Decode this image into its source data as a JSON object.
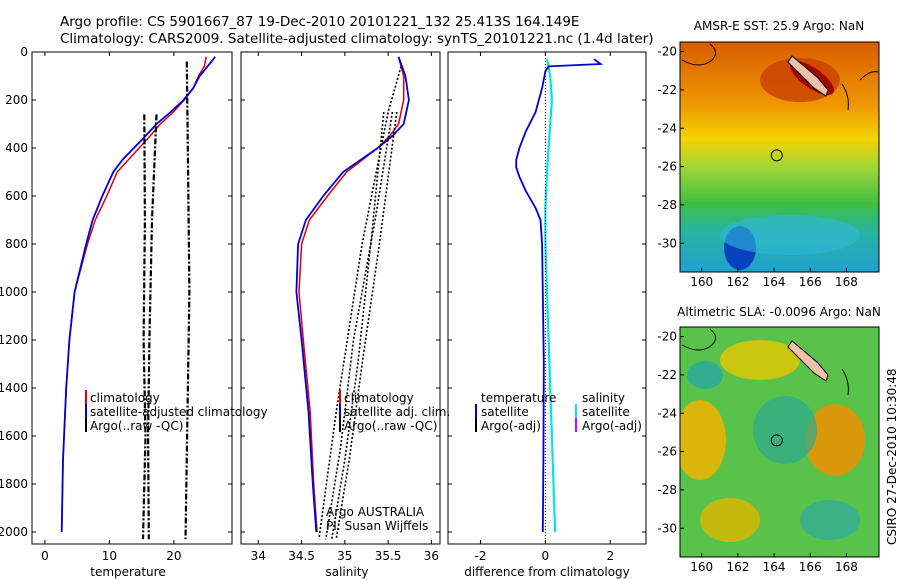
{
  "header": {
    "line1": "Argo profile: CS 5901667_87 19-Dec-2010 20101221_132 25.413S 164.149E",
    "line2": "Climatology: CARS2009. Satellite-adjusted climatology: synTS_20101221.nc (1.4d later)"
  },
  "footer_stamp": "CSIRO 27-Dec-2010 10:30:48",
  "colors": {
    "climatology": "#e00000",
    "satellite": "#0000dd",
    "argo": "#000000",
    "sat_salinity": "#00e5e5",
    "argo_salinity_adj": "#e000e0"
  },
  "chart_data": [
    {
      "type": "line",
      "xlabel": "temperature",
      "xlim": [
        -2,
        29
      ],
      "ylim": [
        0,
        2050
      ],
      "y_reversed": true,
      "xticks": [
        0,
        10,
        20
      ],
      "yticks": [
        0,
        200,
        400,
        600,
        800,
        1000,
        1200,
        1400,
        1600,
        1800,
        2000
      ],
      "legend": [
        "climatology",
        "satellite-adjusted climatology",
        "Argo(..raw -QC)"
      ],
      "series": [
        {
          "name": "climatology",
          "x": [
            25.0,
            24.7,
            23.8,
            23.0,
            21.6,
            19.9,
            17.9,
            16.3,
            14.6,
            12.9,
            11.2,
            9.6,
            7.8,
            6.6,
            5.6,
            4.6,
            3.8,
            3.3,
            2.8,
            2.6
          ],
          "y": [
            20,
            60,
            100,
            150,
            200,
            250,
            300,
            350,
            400,
            450,
            500,
            600,
            700,
            800,
            900,
            1000,
            1200,
            1400,
            1700,
            2000
          ]
        },
        {
          "name": "satellite-adjusted climatology",
          "x": [
            26.4,
            25.2,
            24.0,
            23.0,
            21.5,
            19.5,
            17.3,
            15.6,
            13.8,
            12.0,
            10.6,
            8.9,
            7.4,
            6.4,
            5.5,
            4.6,
            3.8,
            3.3,
            2.8,
            2.6
          ],
          "y": [
            20,
            60,
            100,
            150,
            200,
            250,
            300,
            350,
            400,
            450,
            500,
            600,
            700,
            800,
            900,
            1000,
            1200,
            1400,
            1700,
            2000
          ]
        },
        {
          "name": "Argo(..raw -QC)",
          "x": [
            22.0,
            22.2,
            22.4,
            22.1,
            21.8,
            17.3,
            16.6,
            16.2,
            16.0,
            15.4,
            15.5,
            15.3
          ],
          "y": [
            40,
            200,
            400,
            600,
            800,
            250,
            400,
            700,
            1000,
            1300,
            1700,
            2000
          ]
        }
      ]
    },
    {
      "type": "line",
      "xlabel": "salinity",
      "xlim": [
        33.8,
        36.1
      ],
      "ylim": [
        0,
        2050
      ],
      "y_reversed": true,
      "xticks": [
        34,
        34.5,
        35,
        35.5,
        36
      ],
      "legend": [
        "climatology",
        "satellite adj. clim.",
        "Argo(..raw -QC)"
      ],
      "annotation": [
        "Argo AUSTRALIA",
        "PI: Susan Wijffels"
      ],
      "series": [
        {
          "name": "climatology",
          "x": [
            35.62,
            35.68,
            35.68,
            35.62,
            35.52,
            35.38,
            35.2,
            35.02,
            34.8,
            34.59,
            34.5,
            34.47,
            34.52,
            34.6,
            34.64,
            34.68
          ],
          "y": [
            20,
            100,
            200,
            300,
            350,
            400,
            450,
            500,
            600,
            700,
            800,
            1000,
            1200,
            1500,
            1800,
            2000
          ]
        },
        {
          "name": "satellite adj. clim.",
          "x": [
            35.62,
            35.7,
            35.74,
            35.68,
            35.55,
            35.38,
            35.18,
            34.98,
            34.75,
            34.55,
            34.46,
            34.44,
            34.5,
            34.58,
            34.63,
            34.67
          ],
          "y": [
            20,
            100,
            200,
            300,
            350,
            400,
            450,
            500,
            600,
            700,
            800,
            1000,
            1200,
            1500,
            1800,
            2000
          ]
        },
        {
          "name": "Argo(..raw -QC)",
          "x": [
            35.65,
            35.5,
            35.2,
            34.9,
            34.7,
            35.6,
            35.4,
            35.2,
            35.05,
            34.9,
            35.45,
            35.3,
            35.15,
            35.0,
            34.85,
            34.72
          ],
          "y": [
            60,
            250,
            800,
            1500,
            2020,
            250,
            800,
            1300,
            1700,
            2020,
            250,
            800,
            1300,
            1700,
            2020,
            2020
          ]
        }
      ]
    },
    {
      "type": "line",
      "xlabel": "difference from climatology",
      "xlim": [
        -3,
        3.1
      ],
      "ylim": [
        0,
        2050
      ],
      "y_reversed": true,
      "xticks": [
        -2,
        0,
        2
      ],
      "legend": [
        "temperature",
        "satellite",
        "Argo(-adj)",
        "salinity",
        "satellite",
        "Argo(-adj)"
      ],
      "series": [
        {
          "name": "temperature satellite",
          "x": [
            1.5,
            1.7,
            0.1,
            0.0,
            -0.1,
            -0.3,
            -0.6,
            -0.8,
            -0.9,
            -0.9,
            -0.8,
            -0.6,
            -0.3,
            -0.15,
            -0.1,
            -0.08,
            -0.05,
            -0.06,
            -0.08
          ],
          "y": [
            30,
            50,
            60,
            80,
            150,
            250,
            330,
            400,
            450,
            480,
            520,
            580,
            650,
            700,
            800,
            1000,
            1300,
            1700,
            2000
          ]
        },
        {
          "name": "salinity satellite",
          "x": [
            0.05,
            0.15,
            0.2,
            0.15,
            0.1,
            0.05,
            0.0,
            0.0,
            0.05,
            0.1,
            0.15,
            0.2,
            0.25,
            0.3
          ],
          "y": [
            30,
            100,
            200,
            300,
            400,
            500,
            650,
            800,
            1000,
            1200,
            1400,
            1600,
            1800,
            2000
          ]
        }
      ]
    },
    {
      "type": "heatmap",
      "title": "AMSR-E SST: 25.9  Argo: NaN",
      "xlim": [
        158.8,
        169.8
      ],
      "ylim": [
        -31.5,
        -19.5
      ],
      "xticks": [
        160,
        162,
        164,
        166,
        168
      ],
      "yticks": [
        -20,
        -22,
        -24,
        -26,
        -28,
        -30
      ],
      "marker": {
        "lon": 164.149,
        "lat": -25.413
      }
    },
    {
      "type": "heatmap",
      "title": "Altimetric SLA: -0.0096  Argo: NaN",
      "xlim": [
        158.8,
        169.8
      ],
      "ylim": [
        -31.5,
        -19.5
      ],
      "xticks": [
        160,
        162,
        164,
        166,
        168
      ],
      "yticks": [
        -20,
        -22,
        -24,
        -26,
        -28,
        -30
      ],
      "marker": {
        "lon": 164.149,
        "lat": -25.413
      }
    }
  ]
}
